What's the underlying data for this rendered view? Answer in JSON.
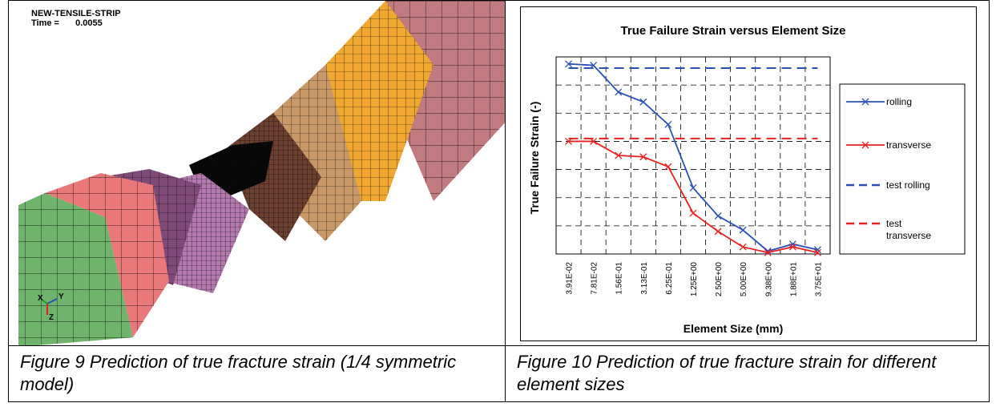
{
  "simulation": {
    "model_name": "NEW-TENSILE-STRIP",
    "time_label": "Time =",
    "time_value": "0.0055",
    "axis_triad": {
      "x": "X",
      "y": "Y",
      "z": "Z"
    },
    "part_colors": [
      "#6fb36c",
      "#e8787a",
      "#7e4a78",
      "#b47ab0",
      "#000000",
      "#6b4030",
      "#c89868",
      "#f0a830",
      "#c07a80"
    ]
  },
  "captions": {
    "left": "Figure 9 Prediction of true fracture strain (1/4 symmetric model)",
    "right": "Figure 10 Prediction of true fracture strain for different element sizes"
  },
  "chart_data": {
    "type": "line",
    "title": "True Failure Strain versus Element Size",
    "xlabel": "Element Size (mm)",
    "ylabel": "True Failure Strain (-)",
    "categories": [
      "3.91E-02",
      "7.81E-02",
      "1.56E-01",
      "3.13E-01",
      "6.25E-01",
      "1.25E+00",
      "2.50E+00",
      "5.00E+00",
      "9.38E+00",
      "1.88E+01",
      "3.75E+01"
    ],
    "ylim": [
      0,
      7
    ],
    "grid": true,
    "legend_position": "right",
    "series": [
      {
        "name": "rolling",
        "color": "#2a4fb5",
        "style": "solid-x",
        "values": [
          6.75,
          6.7,
          5.75,
          5.4,
          4.6,
          2.35,
          1.35,
          0.85,
          0.1,
          0.35,
          0.15
        ]
      },
      {
        "name": "transverse",
        "color": "#e82020",
        "style": "solid-x",
        "values": [
          4.0,
          4.0,
          3.5,
          3.45,
          3.1,
          1.45,
          0.8,
          0.25,
          0.05,
          0.25,
          0.05
        ]
      },
      {
        "name": "test rolling",
        "color": "#2a4fb5",
        "style": "dashed",
        "values": [
          6.6,
          6.6,
          6.6,
          6.6,
          6.6,
          6.6,
          6.6,
          6.6,
          6.6,
          6.6,
          6.6
        ]
      },
      {
        "name": "test transverse",
        "color": "#e82020",
        "style": "dashed",
        "values": [
          4.1,
          4.1,
          4.1,
          4.1,
          4.1,
          4.1,
          4.1,
          4.1,
          4.1,
          4.1,
          4.1
        ]
      }
    ]
  }
}
